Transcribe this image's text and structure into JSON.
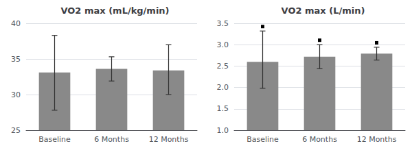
{
  "chart_data": [
    {
      "type": "bar",
      "title": "VO2 max (mL/kg/min)",
      "categories": [
        "Baseline",
        "6 Months",
        "12 Months"
      ],
      "values": [
        33.1,
        33.6,
        33.4
      ],
      "errors_upper": [
        5.2,
        1.7,
        3.6
      ],
      "errors_lower": [
        5.3,
        1.7,
        3.4
      ],
      "color": "#898989",
      "ylim": [
        25,
        40
      ],
      "yticks": [
        25,
        30,
        35,
        40
      ],
      "grid": true
    },
    {
      "type": "bar",
      "title": "VO2 max (L/min)",
      "categories": [
        "Baseline",
        "6 Months",
        "12 Months"
      ],
      "values": [
        2.6,
        2.72,
        2.79
      ],
      "errors_upper": [
        0.72,
        0.28,
        0.15
      ],
      "errors_lower": [
        0.62,
        0.28,
        0.15
      ],
      "color": "#898989",
      "ylim": [
        1.0,
        3.5
      ],
      "yticks": [
        {
          "value": 1,
          "label": "1.0"
        },
        1.5,
        {
          "value": 2,
          "label": "2.0"
        },
        2.5,
        {
          "value": 3,
          "label": "3.0"
        },
        3.5
      ],
      "grid": true,
      "marker": "square"
    }
  ]
}
